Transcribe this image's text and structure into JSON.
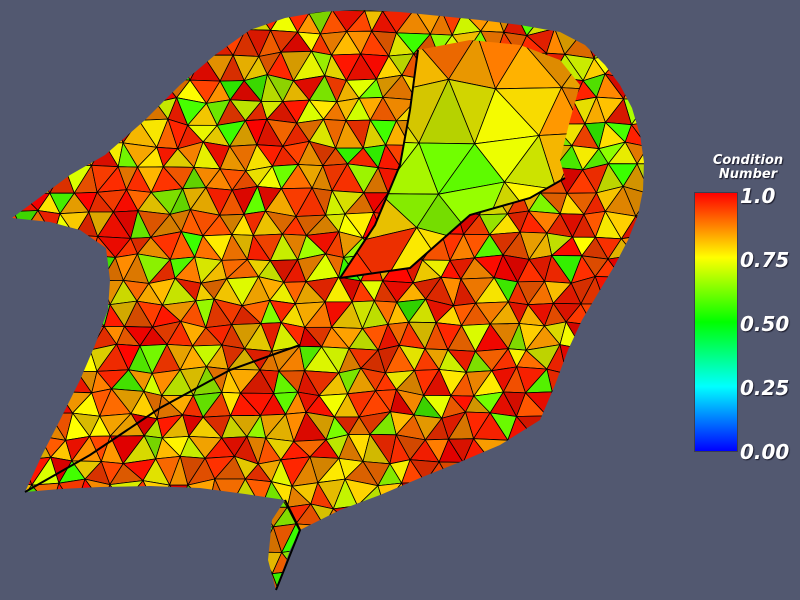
{
  "legend": {
    "title_line1": "Condition",
    "title_line2": "Number",
    "ticks": [
      "1.0",
      "0.75",
      "0.50",
      "0.25",
      "0.00"
    ],
    "colormap_stops": [
      {
        "value": 0.0,
        "color": "#0000ff"
      },
      {
        "value": 0.25,
        "color": "#00ffff"
      },
      {
        "value": 0.5,
        "color": "#00ff00"
      },
      {
        "value": 0.75,
        "color": "#ffff00"
      },
      {
        "value": 1.0,
        "color": "#ff0000"
      }
    ]
  },
  "colors": {
    "background": "#525870",
    "mesh_edge": "#000000"
  }
}
